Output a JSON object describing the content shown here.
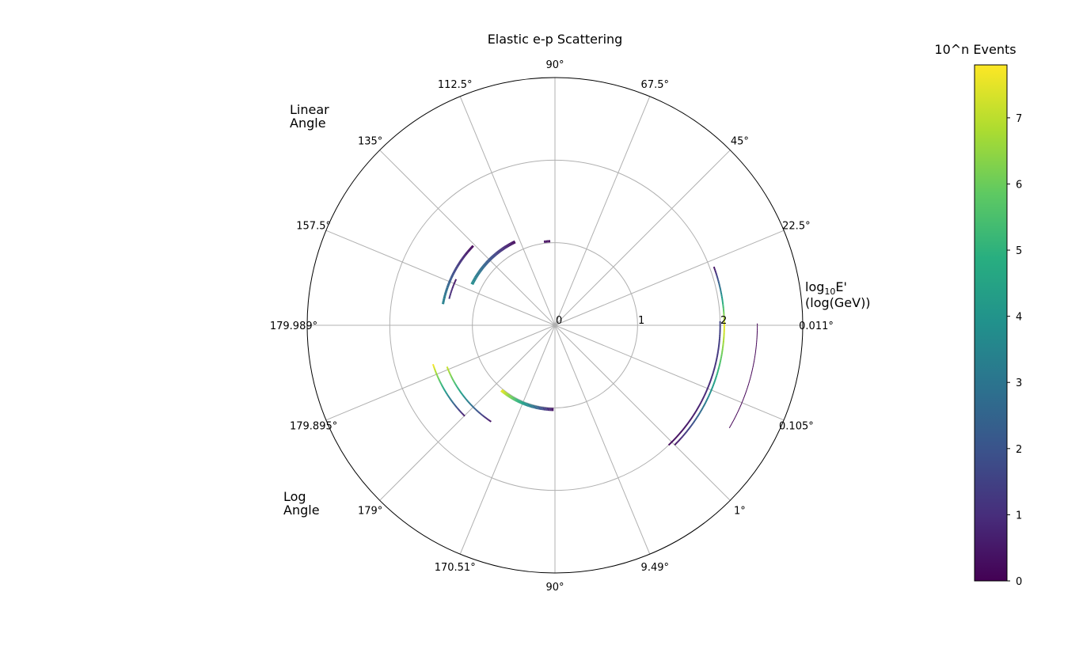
{
  "chart_data": {
    "type": "polar-scatter",
    "title": "Elastic e-p Scattering",
    "radial_axis": {
      "label_line1": "log",
      "label_sub": "10",
      "label_line1_tail": "E'",
      "label_line2": "(log(GeV))",
      "ticks": [
        "0",
        "1",
        "2"
      ],
      "rlim": [
        0,
        3
      ]
    },
    "upper_half_label": [
      "Linear",
      "Angle"
    ],
    "lower_half_label": [
      "Log",
      "Angle"
    ],
    "angle_labels": [
      {
        "deg": 0,
        "text": "0.011°"
      },
      {
        "deg": 22.5,
        "text": "22.5°"
      },
      {
        "deg": 45,
        "text": "45°"
      },
      {
        "deg": 67.5,
        "text": "67.5°"
      },
      {
        "deg": 90,
        "text": "90°"
      },
      {
        "deg": 112.5,
        "text": "112.5°"
      },
      {
        "deg": 135,
        "text": "135°"
      },
      {
        "deg": 157.5,
        "text": "157.5°"
      },
      {
        "deg": 180,
        "text": "179.989°"
      },
      {
        "deg": 202.5,
        "text": "179.895°"
      },
      {
        "deg": 225,
        "text": "179°"
      },
      {
        "deg": 247.5,
        "text": "170.51°"
      },
      {
        "deg": 270,
        "text": "90°"
      },
      {
        "deg": 292.5,
        "text": "9.49°"
      },
      {
        "deg": 315,
        "text": "1°"
      },
      {
        "deg": 337.5,
        "text": "0.105°"
      }
    ],
    "grid": true,
    "colorbar": {
      "title": "10^n Events",
      "ticks": [
        "0",
        "1",
        "2",
        "3",
        "4",
        "5",
        "6",
        "7"
      ],
      "range": [
        0,
        7.8
      ],
      "colormap": "viridis"
    },
    "arcs": [
      {
        "r": 2.05,
        "theta_start": 20.2,
        "theta_end": 0,
        "v_start": 0.3,
        "v_end": 7.6,
        "width": 2
      },
      {
        "r": 2.05,
        "theta_start": 0,
        "theta_end": -45,
        "v_start": 7.6,
        "v_end": 0.4,
        "width": 2
      },
      {
        "r": 2.0,
        "theta_start": 1.4,
        "theta_end": -46.5,
        "v_start": 1.6,
        "v_end": 0.2,
        "width": 2
      },
      {
        "r": 2.45,
        "theta_start": 0.5,
        "theta_end": -30.5,
        "v_start": 0.05,
        "v_end": 0.05,
        "width": 1
      },
      {
        "r": 1.12,
        "theta_start": 115.5,
        "theta_end": 153.7,
        "v_start": 0.2,
        "v_end": 3.8,
        "width": 4
      },
      {
        "r": 1.02,
        "theta_start": 93.2,
        "theta_end": 97.5,
        "v_start": 0.2,
        "v_end": 0.4,
        "width": 3
      },
      {
        "r": 1.38,
        "theta_start": 135.8,
        "theta_end": 169.3,
        "v_start": 0.1,
        "v_end": 3.5,
        "width": 3
      },
      {
        "r": 1.32,
        "theta_start": 155,
        "theta_end": 166,
        "v_start": 0.4,
        "v_end": 1.2,
        "width": 2
      },
      {
        "r": 1.02,
        "theta_start": 230.5,
        "theta_end": 269.1,
        "v_start": 7.6,
        "v_end": 0.3,
        "width": 4
      },
      {
        "r": 1.4,
        "theta_start": 201,
        "theta_end": 236.5,
        "v_start": 7.2,
        "v_end": 0.4,
        "width": 2
      },
      {
        "r": 1.55,
        "theta_start": 197.7,
        "theta_end": 225.2,
        "v_start": 7.8,
        "v_end": 0.5,
        "width": 2
      }
    ]
  }
}
